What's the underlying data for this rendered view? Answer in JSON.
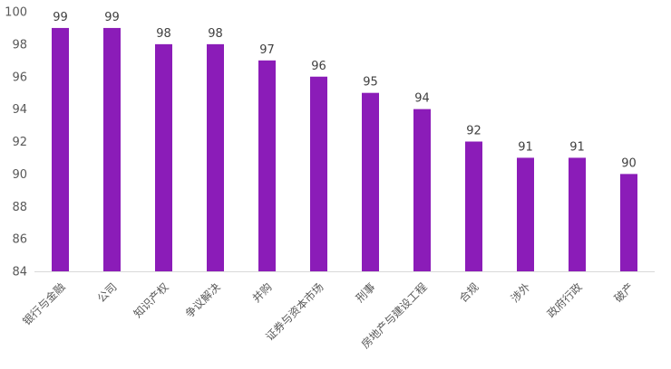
{
  "chart_data": {
    "type": "bar",
    "categories": [
      "银行与金融",
      "公司",
      "知识产权",
      "争议解决",
      "并购",
      "证券与资本市场",
      "刑事",
      "房地产与建设工程",
      "合规",
      "涉外",
      "政府行政",
      "破产"
    ],
    "values": [
      99,
      99,
      98,
      98,
      97,
      96,
      95,
      94,
      92,
      91,
      91,
      90
    ],
    "title": "",
    "xlabel": "",
    "ylabel": "",
    "ylim": [
      84,
      100
    ],
    "yticks": [
      84,
      86,
      88,
      90,
      92,
      94,
      96,
      98,
      100
    ],
    "grid": false,
    "legend": "none",
    "bar_color": "#8B1CB8",
    "axis_color": "#D9D9D9"
  }
}
